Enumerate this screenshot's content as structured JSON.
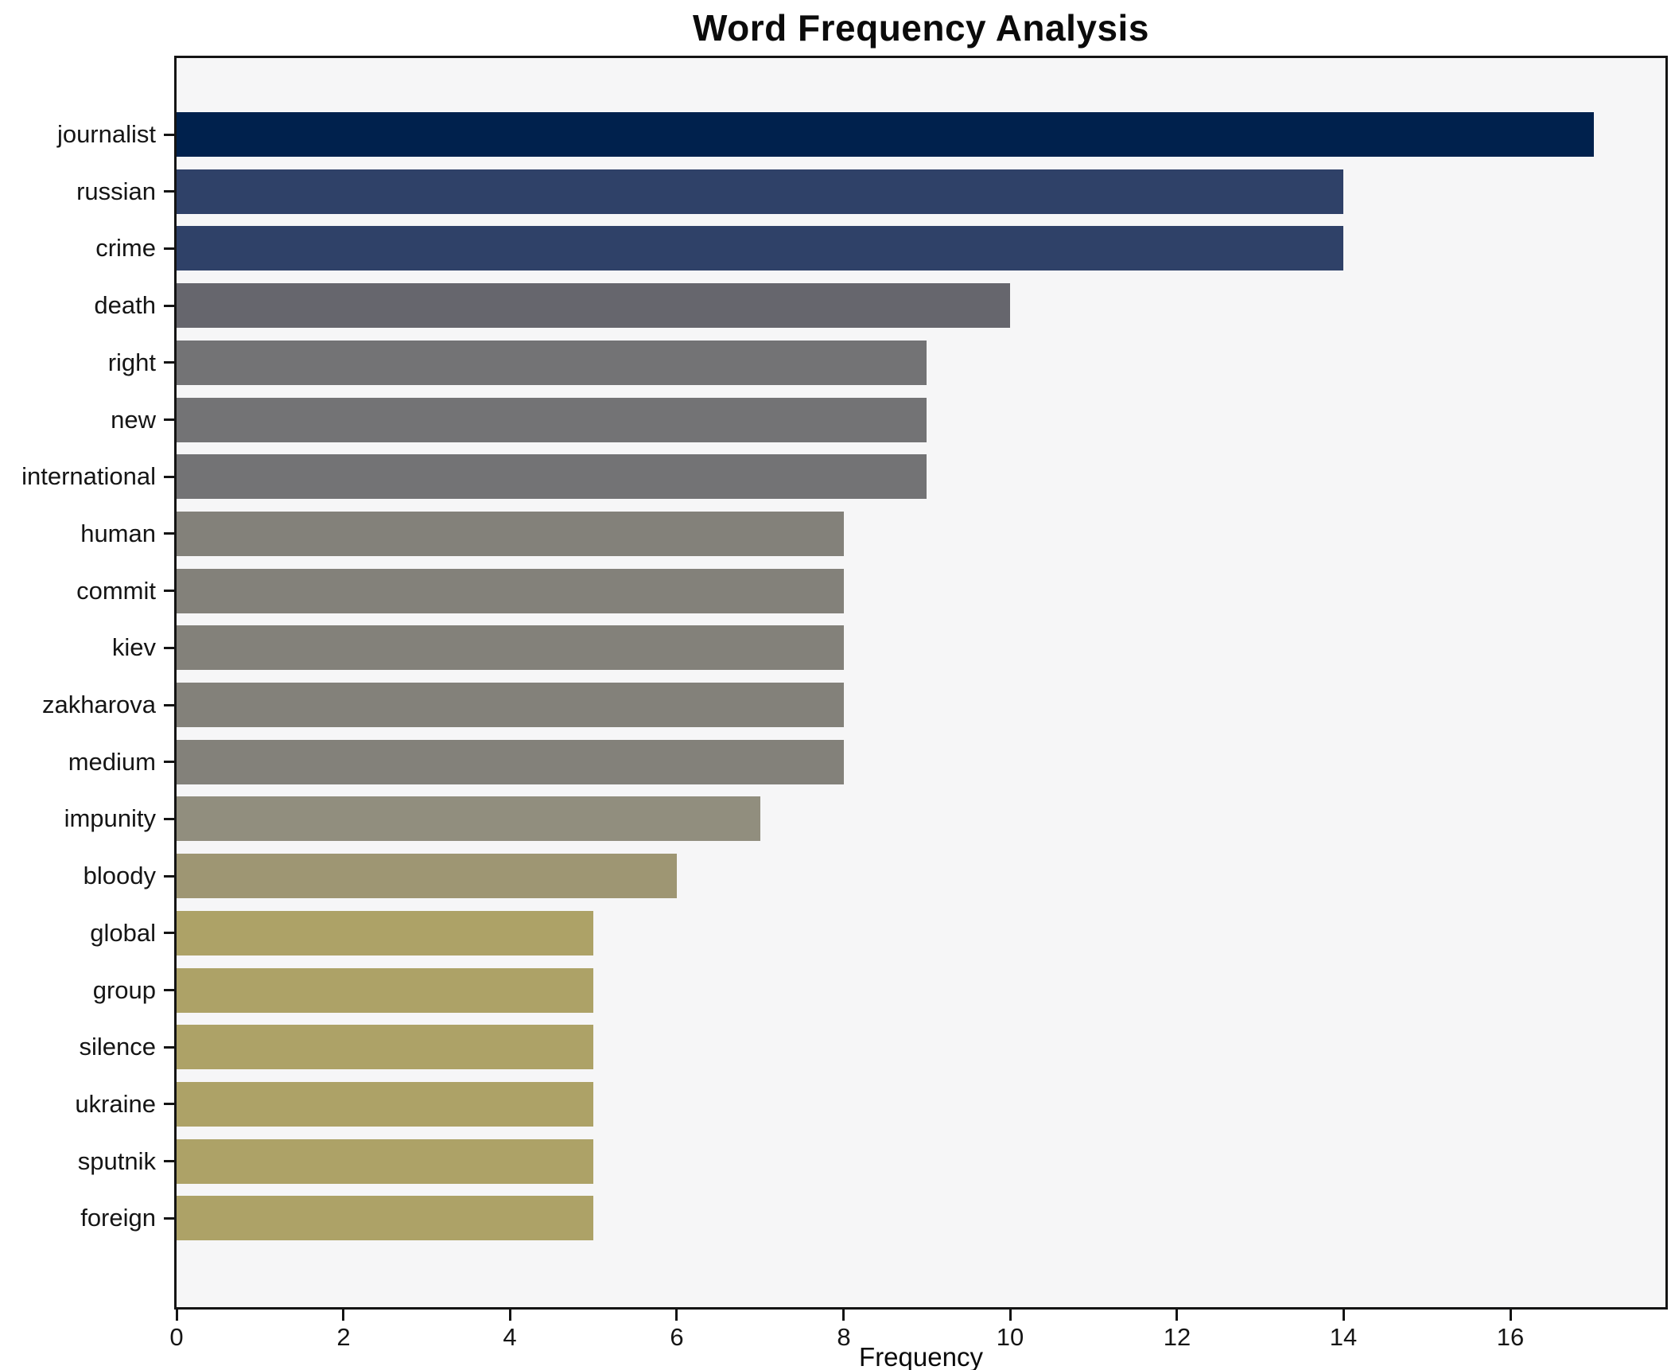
{
  "chart_data": {
    "type": "bar",
    "orientation": "horizontal",
    "title": "Word Frequency Analysis",
    "xlabel": "Frequency",
    "ylabel": "",
    "categories": [
      "journalist",
      "russian",
      "crime",
      "death",
      "right",
      "new",
      "international",
      "human",
      "commit",
      "kiev",
      "zakharova",
      "medium",
      "impunity",
      "bloody",
      "global",
      "group",
      "silence",
      "ukraine",
      "sputnik",
      "foreign"
    ],
    "values": [
      17,
      14,
      14,
      10,
      9,
      9,
      9,
      8,
      8,
      8,
      8,
      8,
      7,
      6,
      5,
      5,
      5,
      5,
      5,
      5
    ],
    "bar_colors": [
      "#00214d",
      "#2f4168",
      "#2f4168",
      "#66666d",
      "#737375",
      "#737375",
      "#737375",
      "#83817a",
      "#83817a",
      "#83817a",
      "#83817a",
      "#83817a",
      "#918e7e",
      "#9e9673",
      "#ada267",
      "#ada267",
      "#ada267",
      "#ada267",
      "#ada267",
      "#ada267"
    ],
    "xlim": [
      0,
      17.86
    ],
    "x_ticks": [
      0,
      2,
      4,
      6,
      8,
      10,
      12,
      14,
      16
    ],
    "grid": false,
    "legend_position": "none",
    "colormap": "cividis_reversed_by_value",
    "style": {
      "figure_background": "#ffffff",
      "plot_background": "#f6f6f7",
      "spine_color": "#141414",
      "text_color": "#151515"
    }
  }
}
